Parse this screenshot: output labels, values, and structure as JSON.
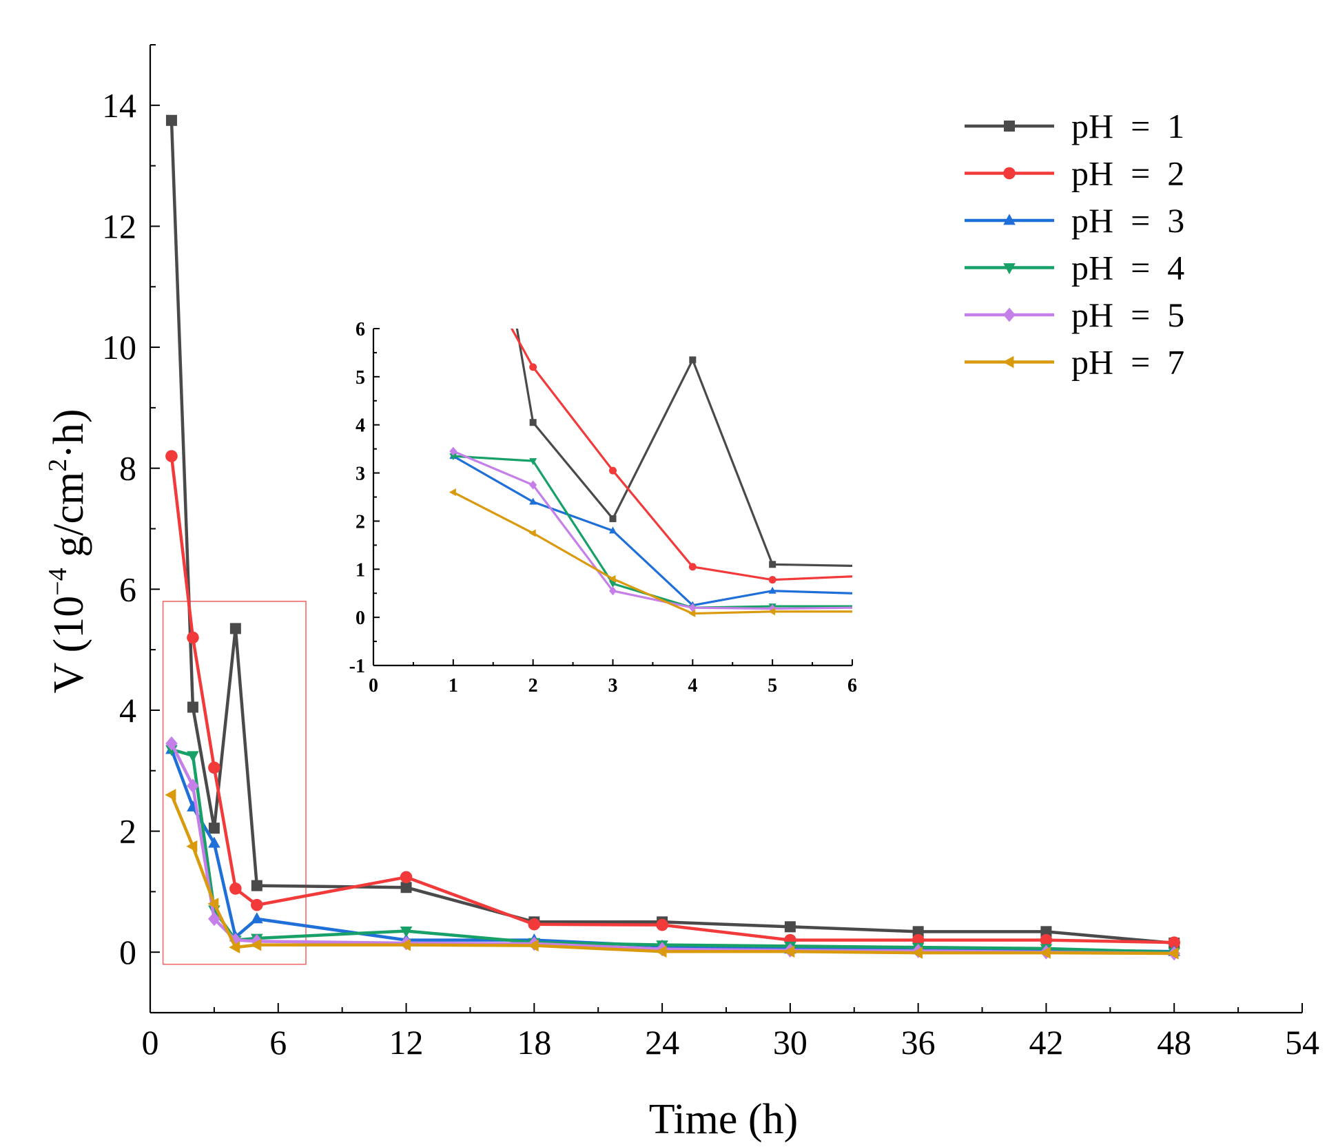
{
  "chart_data": {
    "type": "line",
    "title": "",
    "xlabel": "Time (h)",
    "ylabel_prefix": "V (10",
    "ylabel_exp": "−4",
    "ylabel_mid": " g/cm",
    "ylabel_exp2": "2",
    "ylabel_suffix": "·h)",
    "xlim": [
      0,
      54
    ],
    "ylim": [
      -1,
      15
    ],
    "xticks": [
      0,
      6,
      12,
      18,
      24,
      30,
      36,
      42,
      48,
      54
    ],
    "yticks": [
      0,
      2,
      4,
      6,
      8,
      10,
      12,
      14
    ],
    "legend_position": "top-right",
    "series": [
      {
        "name": "pH  =  1",
        "color": "#4a4a4a",
        "marker": "square",
        "x": [
          1,
          2,
          3,
          4,
          5,
          12,
          18,
          24,
          30,
          36,
          42,
          48
        ],
        "y": [
          13.75,
          4.05,
          2.05,
          5.35,
          1.1,
          1.07,
          0.5,
          0.5,
          0.42,
          0.34,
          0.34,
          0.15
        ]
      },
      {
        "name": "pH  =  2",
        "color": "#f23a3a",
        "marker": "circle",
        "x": [
          1,
          2,
          3,
          4,
          5,
          12,
          18,
          24,
          30,
          36,
          42,
          48
        ],
        "y": [
          8.2,
          5.2,
          3.05,
          1.05,
          0.78,
          1.24,
          0.46,
          0.45,
          0.2,
          0.2,
          0.2,
          0.16
        ]
      },
      {
        "name": "pH  =  3",
        "color": "#1f6fd8",
        "marker": "triangle-up",
        "x": [
          1,
          2,
          3,
          4,
          5,
          12,
          18,
          24,
          30,
          36,
          42,
          48
        ],
        "y": [
          3.35,
          2.4,
          1.8,
          0.25,
          0.55,
          0.2,
          0.2,
          0.1,
          0.05,
          0.04,
          0.04,
          0.01
        ]
      },
      {
        "name": "pH  =  4",
        "color": "#17a068",
        "marker": "triangle-down",
        "x": [
          1,
          2,
          3,
          4,
          5,
          12,
          18,
          24,
          30,
          36,
          42,
          48
        ],
        "y": [
          3.35,
          3.25,
          0.7,
          0.2,
          0.23,
          0.35,
          0.16,
          0.12,
          0.1,
          0.08,
          0.06,
          0.0
        ]
      },
      {
        "name": "pH  =  5",
        "color": "#c57fe8",
        "marker": "diamond",
        "x": [
          1,
          2,
          3,
          4,
          5,
          12,
          18,
          24,
          30,
          36,
          42,
          48
        ],
        "y": [
          3.45,
          2.75,
          0.55,
          0.2,
          0.18,
          0.15,
          0.14,
          0.05,
          0.03,
          0.02,
          0.0,
          -0.02
        ]
      },
      {
        "name": "pH  =  7",
        "color": "#d99a0e",
        "marker": "triangle-left",
        "x": [
          1,
          2,
          3,
          4,
          5,
          12,
          18,
          24,
          30,
          36,
          42,
          48
        ],
        "y": [
          2.6,
          1.75,
          0.8,
          0.08,
          0.12,
          0.12,
          0.11,
          0.01,
          0.01,
          -0.01,
          -0.01,
          -0.02
        ]
      }
    ],
    "inset": {
      "xlim": [
        0,
        6
      ],
      "ylim": [
        -1,
        6
      ],
      "xticks": [
        0,
        1,
        2,
        3,
        4,
        5,
        6
      ],
      "yticks": [
        -1,
        0,
        1,
        2,
        3,
        4,
        5,
        6
      ],
      "xrange_points": [
        1,
        2,
        3,
        4,
        5,
        6
      ],
      "extended_y_at_6": [
        1.07,
        0.85,
        0.5,
        0.23,
        0.2,
        0.12
      ]
    },
    "highlight_box": {
      "x_range": [
        0.6,
        7.3
      ],
      "y_range": [
        -0.2,
        5.8
      ],
      "color": "#f06a6a"
    }
  }
}
